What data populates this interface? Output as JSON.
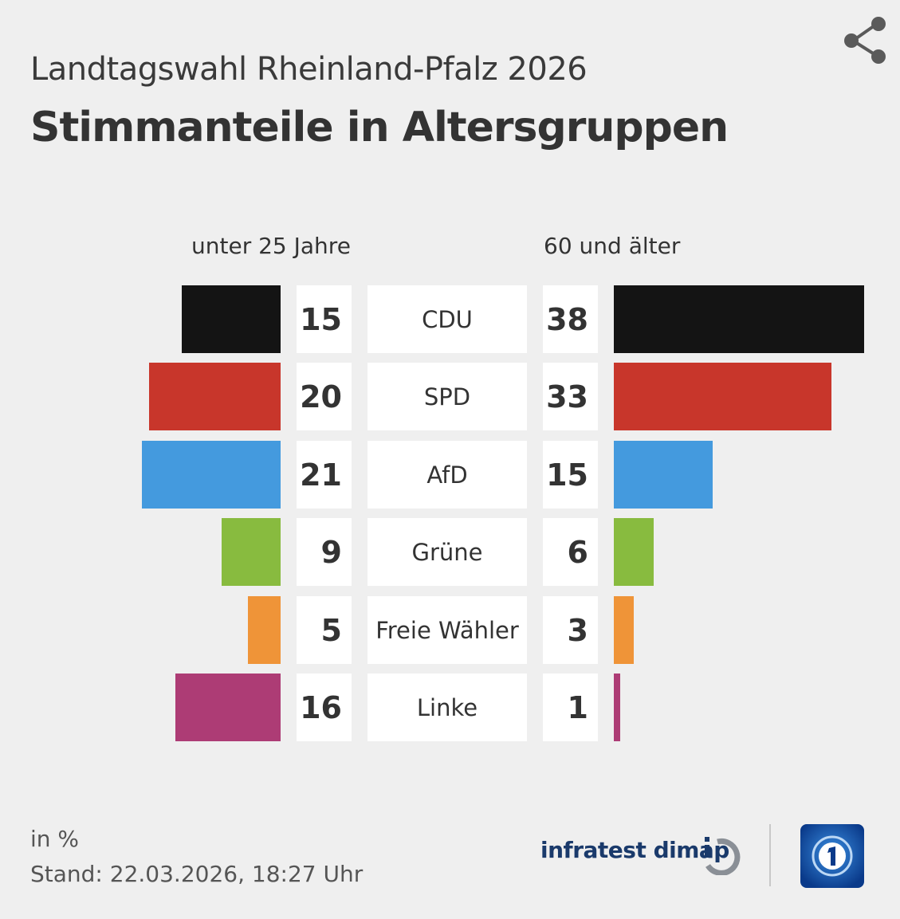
{
  "header": {
    "subtitle": "Landtagswahl Rheinland-Pfalz 2026",
    "title": "Stimmanteile in Altersgruppen",
    "share_icon": "share-icon"
  },
  "chart_data": {
    "type": "bar",
    "title": "Stimmanteile in Altersgruppen",
    "subtitle": "Landtagswahl Rheinland-Pfalz 2026",
    "layout": "butterfly",
    "categories": [
      "CDU",
      "SPD",
      "AfD",
      "Grüne",
      "Freie Wähler",
      "Linke"
    ],
    "colors": [
      "#141414",
      "#c8362b",
      "#449ade",
      "#88bb3f",
      "#ef9438",
      "#ad3c75"
    ],
    "series": [
      {
        "name": "unter 25 Jahre",
        "side": "left",
        "values": [
          15,
          20,
          21,
          9,
          5,
          16
        ]
      },
      {
        "name": "60 und älter",
        "side": "right",
        "values": [
          38,
          33,
          15,
          6,
          3,
          1
        ]
      }
    ],
    "unit": "in %",
    "grid": false
  },
  "footer": {
    "unit": "in %",
    "stand": "Stand:  22.03.2026, 18:27 Uhr",
    "brand": "infratest dimap",
    "brand_logo_icon": "infratest-dimap-logo",
    "broadcaster_logo_icon": "tagesschau-logo"
  }
}
